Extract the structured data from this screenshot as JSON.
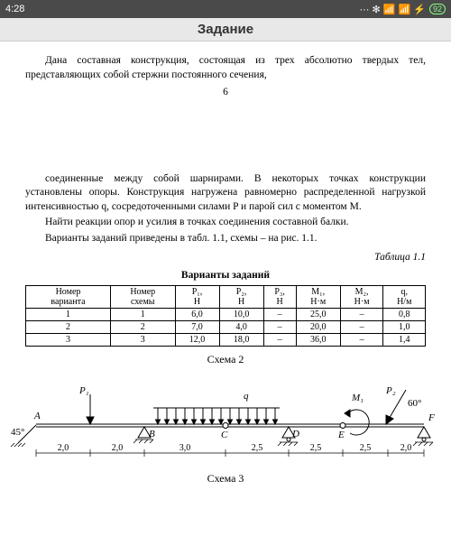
{
  "status": {
    "time": "4:28",
    "icons": "··· ✻ 📶 📶 ⚡",
    "battery": "92"
  },
  "title": "Задание",
  "doc": {
    "para1": "Дана составная конструкция, состоящая из трех абсолютно твердых тел, представляющих собой стержни постоянного сечения,",
    "pagenum": "6",
    "para2": "соединенные между собой шарнирами. В некоторых точках конструкции установлены опоры. Конструкция нагружена равномерно распределенной нагрузкой интенсивностью q, сосредоточенными силами P и парой сил с моментом M.",
    "para3": "Найти реакции опор и усилия в точках соединения составной балки.",
    "para4": "Варианты заданий приведены в табл. 1.1, схемы – на рис. 1.1.",
    "tablecap": "Таблица 1.1",
    "tabletitle": "Варианты заданий",
    "scheme2": "Схема 2",
    "scheme3": "Схема 3"
  },
  "table": {
    "headers": {
      "c1a": "Номер",
      "c1b": "варианта",
      "c2a": "Номер",
      "c2b": "схемы",
      "c3a": "P₁,",
      "c3b": "Н",
      "c4a": "P₂,",
      "c4b": "Н",
      "c5a": "P₃,",
      "c5b": "Н",
      "c6a": "M₁,",
      "c6b": "Н·м",
      "c7a": "M₂,",
      "c7b": "Н·м",
      "c8a": "q,",
      "c8b": "Н/м"
    },
    "rows": [
      {
        "c1": "1",
        "c2": "1",
        "c3": "6,0",
        "c4": "10,0",
        "c5": "–",
        "c6": "25,0",
        "c7": "–",
        "c8": "0,8"
      },
      {
        "c1": "2",
        "c2": "2",
        "c3": "7,0",
        "c4": "4,0",
        "c5": "–",
        "c6": "20,0",
        "c7": "–",
        "c8": "1,0"
      },
      {
        "c1": "3",
        "c2": "3",
        "c3": "12,0",
        "c4": "18,0",
        "c5": "–",
        "c6": "36,0",
        "c7": "–",
        "c8": "1,4"
      }
    ]
  },
  "diagram": {
    "labels": {
      "P1": "P₁",
      "P2": "P₂",
      "q": "q",
      "M1": "M₁",
      "A": "A",
      "B": "B",
      "C": "C",
      "D": "D",
      "E": "E",
      "F": "F",
      "ang45": "45°",
      "ang60": "60°"
    },
    "dims": [
      "2,0",
      "2,0",
      "3,0",
      "2,5",
      "2,5",
      "2,5",
      "2,0"
    ],
    "colors": {
      "stroke": "#000000",
      "fill": "#000000",
      "bg": "#ffffff"
    }
  }
}
